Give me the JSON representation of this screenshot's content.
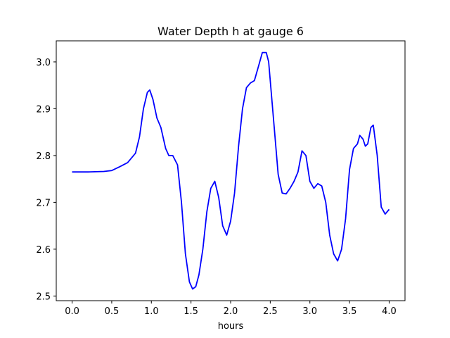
{
  "chart_data": {
    "type": "line",
    "title": "Water Depth h at gauge 6",
    "xlabel": "hours",
    "ylabel": "",
    "xlim": [
      -0.2,
      4.2
    ],
    "ylim": [
      2.49,
      3.045
    ],
    "xticks": [
      "0.0",
      "0.5",
      "1.0",
      "1.5",
      "2.0",
      "2.5",
      "3.0",
      "3.5",
      "4.0"
    ],
    "xtick_values": [
      0.0,
      0.5,
      1.0,
      1.5,
      2.0,
      2.5,
      3.0,
      3.5,
      4.0
    ],
    "yticks": [
      "2.5",
      "2.6",
      "2.7",
      "2.8",
      "2.9",
      "3.0"
    ],
    "ytick_values": [
      2.5,
      2.6,
      2.7,
      2.8,
      2.9,
      3.0
    ],
    "grid": false,
    "series": [
      {
        "color": "#0000ff",
        "x": [
          0.0,
          0.2,
          0.4,
          0.5,
          0.6,
          0.7,
          0.8,
          0.85,
          0.9,
          0.95,
          0.98,
          1.02,
          1.07,
          1.12,
          1.18,
          1.22,
          1.27,
          1.33,
          1.38,
          1.43,
          1.48,
          1.52,
          1.56,
          1.6,
          1.65,
          1.7,
          1.75,
          1.8,
          1.85,
          1.9,
          1.95,
          2.0,
          2.05,
          2.1,
          2.15,
          2.2,
          2.25,
          2.3,
          2.35,
          2.4,
          2.45,
          2.48,
          2.55,
          2.6,
          2.65,
          2.7,
          2.75,
          2.8,
          2.85,
          2.9,
          2.95,
          3.0,
          3.05,
          3.1,
          3.15,
          3.2,
          3.25,
          3.3,
          3.35,
          3.4,
          3.45,
          3.5,
          3.55,
          3.6,
          3.63,
          3.67,
          3.7,
          3.73,
          3.77,
          3.8,
          3.85,
          3.9,
          3.95,
          4.0
        ],
        "y": [
          2.765,
          2.765,
          2.766,
          2.768,
          2.776,
          2.785,
          2.805,
          2.84,
          2.9,
          2.935,
          2.94,
          2.92,
          2.88,
          2.86,
          2.815,
          2.8,
          2.8,
          2.78,
          2.7,
          2.59,
          2.53,
          2.515,
          2.52,
          2.545,
          2.6,
          2.68,
          2.73,
          2.745,
          2.71,
          2.65,
          2.63,
          2.66,
          2.72,
          2.82,
          2.9,
          2.945,
          2.955,
          2.96,
          2.99,
          3.02,
          3.02,
          3.0,
          2.86,
          2.76,
          2.72,
          2.718,
          2.73,
          2.745,
          2.765,
          2.81,
          2.8,
          2.745,
          2.73,
          2.74,
          2.735,
          2.7,
          2.63,
          2.59,
          2.575,
          2.6,
          2.665,
          2.77,
          2.815,
          2.825,
          2.843,
          2.835,
          2.82,
          2.825,
          2.86,
          2.865,
          2.8,
          2.69,
          2.675,
          2.685
        ]
      }
    ]
  }
}
